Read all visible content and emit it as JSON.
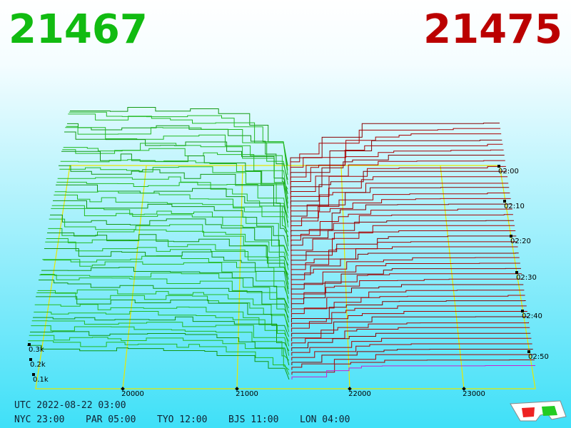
{
  "header": {
    "bid": "21467",
    "ask": "21475"
  },
  "price_axis": {
    "labels": [
      "20000",
      "21000",
      "22000",
      "23000"
    ]
  },
  "time_axis": {
    "labels": [
      "02:00",
      "02:10",
      "02:20",
      "02:30",
      "02:40",
      "02:50"
    ]
  },
  "depth_axis": {
    "labels": [
      "0.3k",
      "0.2k",
      "0.1k"
    ]
  },
  "footer": {
    "utc": "UTC 2022-08-22 03:00",
    "cities": [
      "NYC 23:00",
      "PAR 05:00",
      "TYO 12:00",
      "BJS 11:00",
      "LON 04:00"
    ]
  }
}
